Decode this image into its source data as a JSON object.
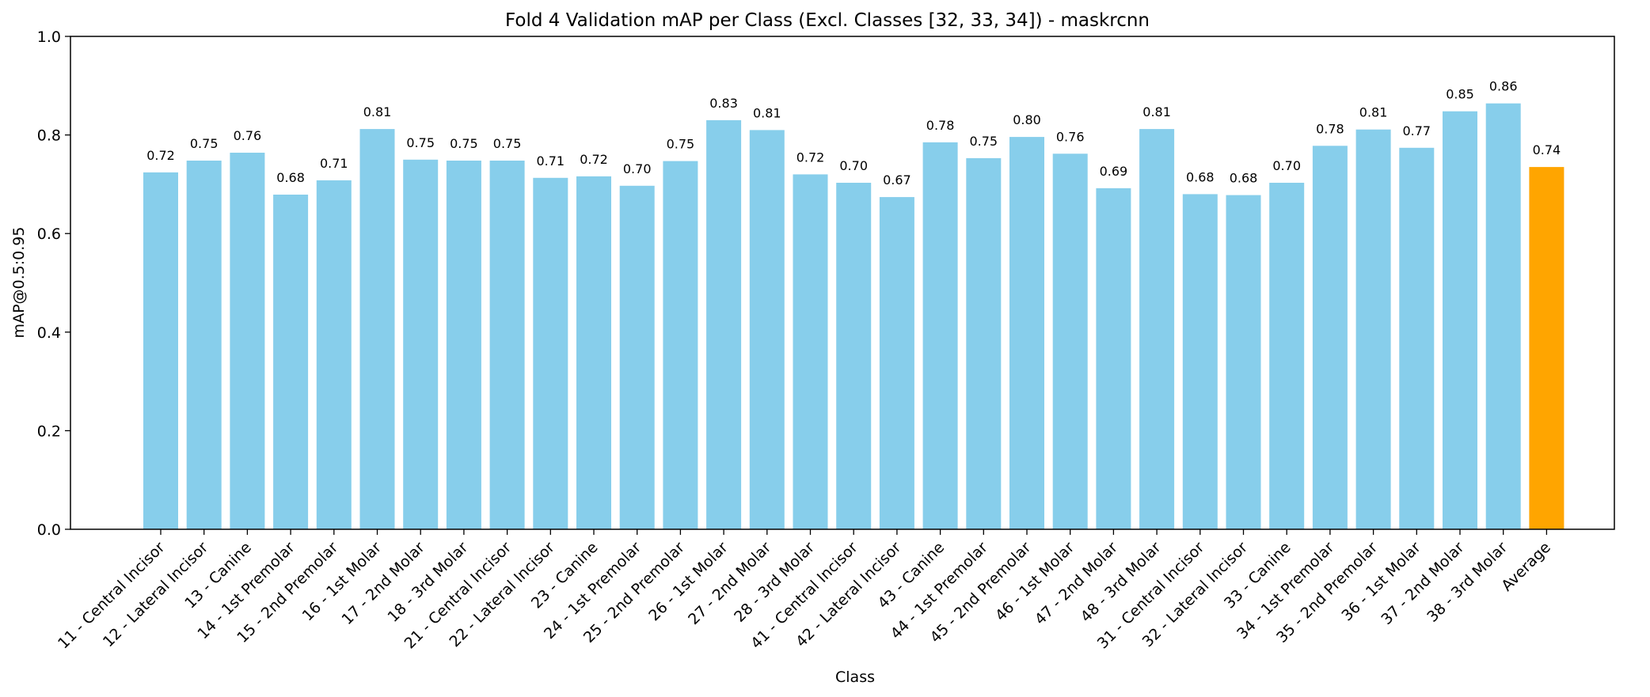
{
  "chart_data": {
    "type": "bar",
    "title": "Fold 4 Validation mAP per Class (Excl. Classes [32, 33, 34]) - maskrcnn",
    "xlabel": "Class",
    "ylabel": "mAP@0.5:0.95",
    "ylim": [
      0,
      1.0
    ],
    "yticks": [
      "0.0",
      "0.2",
      "0.4",
      "0.6",
      "0.8",
      "1.0"
    ],
    "grid": false,
    "colors": {
      "bar": "#87ceeb",
      "average": "#ffa500"
    },
    "categories": [
      "11 - Central Incisor",
      "12 - Lateral Incisor",
      "13 - Canine",
      "14 - 1st Premolar",
      "15 - 2nd Premolar",
      "16 - 1st Molar",
      "17 - 2nd Molar",
      "18 - 3rd Molar",
      "21 - Central Incisor",
      "22 - Lateral Incisor",
      "23 - Canine",
      "24 - 1st Premolar",
      "25 - 2nd Premolar",
      "26 - 1st Molar",
      "27 - 2nd Molar",
      "28 - 3rd Molar",
      "41 - Central Incisor",
      "42 - Lateral Incisor",
      "43 - Canine",
      "44 - 1st Premolar",
      "45 - 2nd Premolar",
      "46 - 1st Molar",
      "47 - 2nd Molar",
      "48 - 3rd Molar",
      "31 - Central Incisor",
      "32 - Lateral Incisor",
      "33 - Canine",
      "34 - 1st Premolar",
      "35 - 2nd Premolar",
      "36 - 1st Molar",
      "37 - 2nd Molar",
      "38 - 3rd Molar",
      "Average"
    ],
    "values": [
      0.724,
      0.748,
      0.764,
      0.679,
      0.708,
      0.812,
      0.75,
      0.748,
      0.748,
      0.713,
      0.716,
      0.697,
      0.747,
      0.83,
      0.81,
      0.72,
      0.703,
      0.674,
      0.785,
      0.753,
      0.796,
      0.762,
      0.692,
      0.812,
      0.68,
      0.678,
      0.703,
      0.778,
      0.811,
      0.774,
      0.848,
      0.864,
      0.735
    ],
    "value_labels": [
      "0.72",
      "0.75",
      "0.76",
      "0.68",
      "0.71",
      "0.81",
      "0.75",
      "0.75",
      "0.75",
      "0.71",
      "0.72",
      "0.70",
      "0.75",
      "0.83",
      "0.81",
      "0.72",
      "0.70",
      "0.67",
      "0.78",
      "0.75",
      "0.80",
      "0.76",
      "0.69",
      "0.81",
      "0.68",
      "0.68",
      "0.70",
      "0.78",
      "0.81",
      "0.77",
      "0.85",
      "0.86",
      "0.74"
    ]
  }
}
